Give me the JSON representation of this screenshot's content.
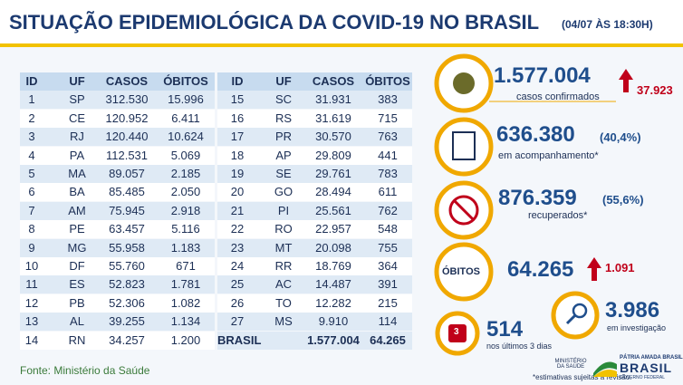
{
  "header": {
    "title": "SITUAÇÃO EPIDEMIOLÓGICA DA COVID-19 NO BRASIL",
    "date": "(04/07 ÀS 18:30H)"
  },
  "table": {
    "columns": [
      "ID",
      "UF",
      "CASOS",
      "ÓBITOS"
    ],
    "rows": [
      [
        "1",
        "SP",
        "312.530",
        "15.996"
      ],
      [
        "2",
        "CE",
        "120.952",
        "6.411"
      ],
      [
        "3",
        "RJ",
        "120.440",
        "10.624"
      ],
      [
        "4",
        "PA",
        "112.531",
        "5.069"
      ],
      [
        "5",
        "MA",
        "89.057",
        "2.185"
      ],
      [
        "6",
        "BA",
        "85.485",
        "2.050"
      ],
      [
        "7",
        "AM",
        "75.945",
        "2.918"
      ],
      [
        "8",
        "PE",
        "63.457",
        "5.116"
      ],
      [
        "9",
        "MG",
        "55.958",
        "1.183"
      ],
      [
        "10",
        "DF",
        "55.760",
        "671"
      ],
      [
        "11",
        "ES",
        "52.823",
        "1.781"
      ],
      [
        "12",
        "PB",
        "52.306",
        "1.082"
      ],
      [
        "13",
        "AL",
        "39.255",
        "1.134"
      ],
      [
        "14",
        "RN",
        "34.257",
        "1.200"
      ],
      [
        "15",
        "SC",
        "31.931",
        "383"
      ],
      [
        "16",
        "RS",
        "31.619",
        "715"
      ],
      [
        "17",
        "PR",
        "30.570",
        "763"
      ],
      [
        "18",
        "AP",
        "29.809",
        "441"
      ],
      [
        "19",
        "SE",
        "29.761",
        "783"
      ],
      [
        "20",
        "GO",
        "28.494",
        "611"
      ],
      [
        "21",
        "PI",
        "25.561",
        "762"
      ],
      [
        "22",
        "RO",
        "22.957",
        "548"
      ],
      [
        "23",
        "MT",
        "20.098",
        "755"
      ],
      [
        "24",
        "RR",
        "18.769",
        "364"
      ],
      [
        "25",
        "AC",
        "14.487",
        "391"
      ],
      [
        "26",
        "TO",
        "12.282",
        "215"
      ],
      [
        "27",
        "MS",
        "9.910",
        "114"
      ]
    ],
    "total": {
      "label": "BRASIL",
      "casos": "1.577.004",
      "obitos": "64.265"
    }
  },
  "stats": {
    "confirmed": {
      "value": "1.577.004",
      "new": "37.923",
      "label": "casos confirmados"
    },
    "monitoring": {
      "value": "636.380",
      "percent": "(40,4%)",
      "label": "em acompanhamento*"
    },
    "recovered": {
      "value": "876.359",
      "percent": "(55,6%)",
      "label": "recuperados*"
    },
    "deaths": {
      "heading": "ÓBITOS",
      "value": "64.265",
      "new": "1.091"
    },
    "recent_deaths": {
      "icon": "3",
      "value": "514",
      "label": "nos últimos 3 dias"
    },
    "investigation": {
      "value": "3.986",
      "label": "em investigação"
    }
  },
  "footer": {
    "source": "Fonte: Ministério da Saúde",
    "note": "*estimativas sujeitas à revisão.",
    "ministry": "MINISTÉRIO DA SAÚDE",
    "slogan": "PÁTRIA AMADA BRASIL",
    "government": "GOVERNO FEDERAL"
  }
}
